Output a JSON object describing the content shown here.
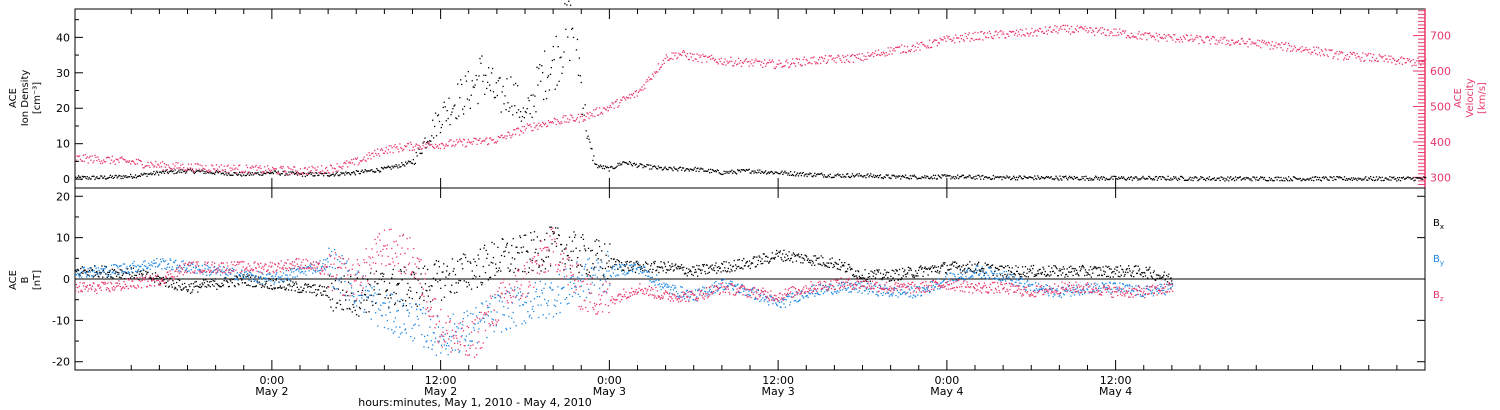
{
  "colors": {
    "axis": "#000000",
    "density": "#000000",
    "velocity": "#e8386a",
    "bx": "#000000",
    "by": "#1e88e5",
    "bz": "#e8386a"
  },
  "chart_data": [
    {
      "type": "scatter",
      "panel": "top",
      "ylabel_left": [
        "ACE",
        "Ion Density",
        "[cm⁻³]"
      ],
      "ylabel_right": [
        "ACE",
        "Velocity",
        "[km/s]"
      ],
      "ylim_left": [
        -2.5,
        48
      ],
      "ylim_right": [
        270,
        775
      ],
      "yticks_left": [
        "0",
        "10",
        "20",
        "30",
        "40"
      ],
      "yticks_left_values": [
        0,
        10,
        20,
        30,
        40
      ],
      "yticks_right": [
        "300",
        "400",
        "500",
        "600",
        "700"
      ],
      "yticks_right_values": [
        300,
        400,
        500,
        600,
        700
      ],
      "x_unit": "hours since May 1, 2010 00:00",
      "xlim": [
        10,
        106
      ],
      "series": [
        {
          "name": "Ion Density",
          "axis": "left",
          "color_key": "density",
          "x": [
            10,
            12,
            14,
            16,
            18,
            20,
            22,
            24,
            26,
            28,
            30,
            32,
            34,
            35,
            36,
            37,
            38,
            39,
            40,
            41,
            42,
            43,
            44,
            45,
            45.5,
            46,
            46.5,
            47,
            48,
            49,
            50,
            52,
            54,
            56,
            58,
            60,
            62,
            64,
            66,
            68,
            70,
            72,
            76,
            80,
            84,
            88,
            92,
            96,
            100,
            104,
            106
          ],
          "y": [
            0.5,
            0.6,
            1,
            2,
            2.5,
            2,
            1.5,
            2,
            1.5,
            1.5,
            2,
            3,
            5,
            12,
            18,
            22,
            25,
            30,
            23,
            25,
            17,
            28,
            33,
            42,
            45,
            25,
            10,
            4,
            3,
            5,
            4,
            3,
            3,
            2,
            2.5,
            2,
            1.5,
            1.2,
            1.2,
            0.8,
            0.8,
            0.8,
            0.6,
            0.5,
            0.4,
            0.4,
            0.3,
            0.3,
            0.3,
            0.3,
            0.3
          ]
        },
        {
          "name": "Velocity",
          "axis": "right",
          "color_key": "velocity",
          "x": [
            10,
            12,
            14,
            16,
            18,
            20,
            22,
            24,
            26,
            28,
            30,
            32,
            34,
            36,
            38,
            40,
            42,
            44,
            46,
            48,
            50,
            51,
            52,
            53,
            54,
            56,
            58,
            60,
            62,
            64,
            66,
            68,
            70,
            72,
            74,
            76,
            78,
            80,
            82,
            84,
            86,
            88,
            90,
            92,
            94,
            96,
            98,
            100,
            102,
            104,
            106
          ],
          "y": [
            355,
            352,
            345,
            335,
            330,
            328,
            325,
            322,
            320,
            325,
            345,
            380,
            390,
            395,
            400,
            408,
            440,
            460,
            470,
            500,
            540,
            590,
            640,
            650,
            640,
            630,
            625,
            620,
            630,
            635,
            640,
            660,
            670,
            690,
            700,
            705,
            710,
            720,
            715,
            710,
            700,
            695,
            690,
            685,
            680,
            670,
            660,
            645,
            640,
            630,
            625
          ]
        }
      ]
    },
    {
      "type": "scatter",
      "panel": "bottom",
      "ylabel": [
        "ACE",
        "B",
        "[nT]"
      ],
      "ylim": [
        -22,
        22
      ],
      "yticks": [
        "-20",
        "-10",
        "0",
        "10",
        "20"
      ],
      "yticks_values": [
        -20,
        -10,
        0,
        10,
        20
      ],
      "zero_line": true,
      "xlim": [
        10,
        106
      ],
      "xlabel": "hours:minutes, May  1, 2010 - May  4, 2010",
      "xticks": [
        {
          "value": 24,
          "time": "0:00",
          "day": "May 2"
        },
        {
          "value": 36,
          "time": "12:00",
          "day": "May 2"
        },
        {
          "value": 48,
          "time": "0:00",
          "day": "May 3"
        },
        {
          "value": 60,
          "time": "12:00",
          "day": "May 3"
        },
        {
          "value": 72,
          "time": "0:00",
          "day": "May 4"
        },
        {
          "value": 84,
          "time": "12:00",
          "day": "May 4"
        }
      ],
      "series": [
        {
          "name": "Bx",
          "legend_main": "B",
          "legend_sub": "x",
          "color_key": "bx",
          "x": [
            10,
            12,
            14,
            16,
            18,
            20,
            22,
            24,
            26,
            28,
            30,
            32,
            34,
            36,
            38,
            40,
            42,
            44,
            46,
            48,
            50,
            52,
            54,
            56,
            58,
            60,
            62,
            64,
            66,
            68,
            70,
            72,
            74,
            76,
            78,
            80,
            82,
            84,
            86,
            88
          ],
          "y": [
            2,
            2,
            1.5,
            0,
            -2,
            -1,
            0,
            -1,
            -2,
            -3,
            -4,
            -2,
            -2,
            0,
            2,
            5,
            6,
            8,
            6,
            4,
            3,
            3,
            2,
            3,
            4,
            6,
            5,
            4,
            1,
            1,
            2,
            3,
            3,
            2,
            2,
            2,
            2,
            2,
            2,
            0
          ]
        },
        {
          "name": "By",
          "legend_main": "B",
          "legend_sub": "y",
          "color_key": "by",
          "x": [
            10,
            12,
            14,
            16,
            18,
            20,
            22,
            24,
            26,
            28,
            30,
            32,
            34,
            36,
            38,
            40,
            42,
            44,
            46,
            48,
            50,
            52,
            54,
            56,
            58,
            60,
            62,
            64,
            66,
            68,
            70,
            72,
            74,
            76,
            78,
            80,
            82,
            84,
            86,
            88
          ],
          "y": [
            2,
            2,
            3,
            4,
            3,
            2,
            1,
            0,
            2,
            4,
            -2,
            -8,
            -10,
            -14,
            -12,
            -8,
            -6,
            -4,
            0,
            2,
            3,
            -2,
            -4,
            -1,
            -3,
            -6,
            -3,
            -2,
            -2,
            -3,
            -3,
            0,
            2,
            1,
            -2,
            -3,
            -2,
            -2,
            -3,
            -2
          ]
        },
        {
          "name": "Bz",
          "legend_main": "B",
          "legend_sub": "z",
          "color_key": "bz",
          "x": [
            10,
            12,
            14,
            16,
            18,
            20,
            22,
            24,
            26,
            28,
            30,
            32,
            34,
            36,
            38,
            40,
            42,
            44,
            46,
            48,
            50,
            52,
            54,
            56,
            58,
            60,
            62,
            64,
            66,
            68,
            70,
            72,
            74,
            76,
            78,
            80,
            82,
            84,
            86,
            88
          ],
          "y": [
            -2,
            -2,
            -1,
            0,
            3,
            3,
            3,
            3,
            4,
            2,
            0,
            8,
            5,
            -12,
            -16,
            -6,
            0,
            8,
            -3,
            -5,
            -2,
            -4,
            -4,
            -2,
            -3,
            -4,
            -2,
            -1,
            -1,
            -2,
            -2,
            -1,
            -2,
            -2,
            -3,
            -2,
            -2,
            -3,
            -3,
            -2
          ]
        }
      ]
    }
  ]
}
